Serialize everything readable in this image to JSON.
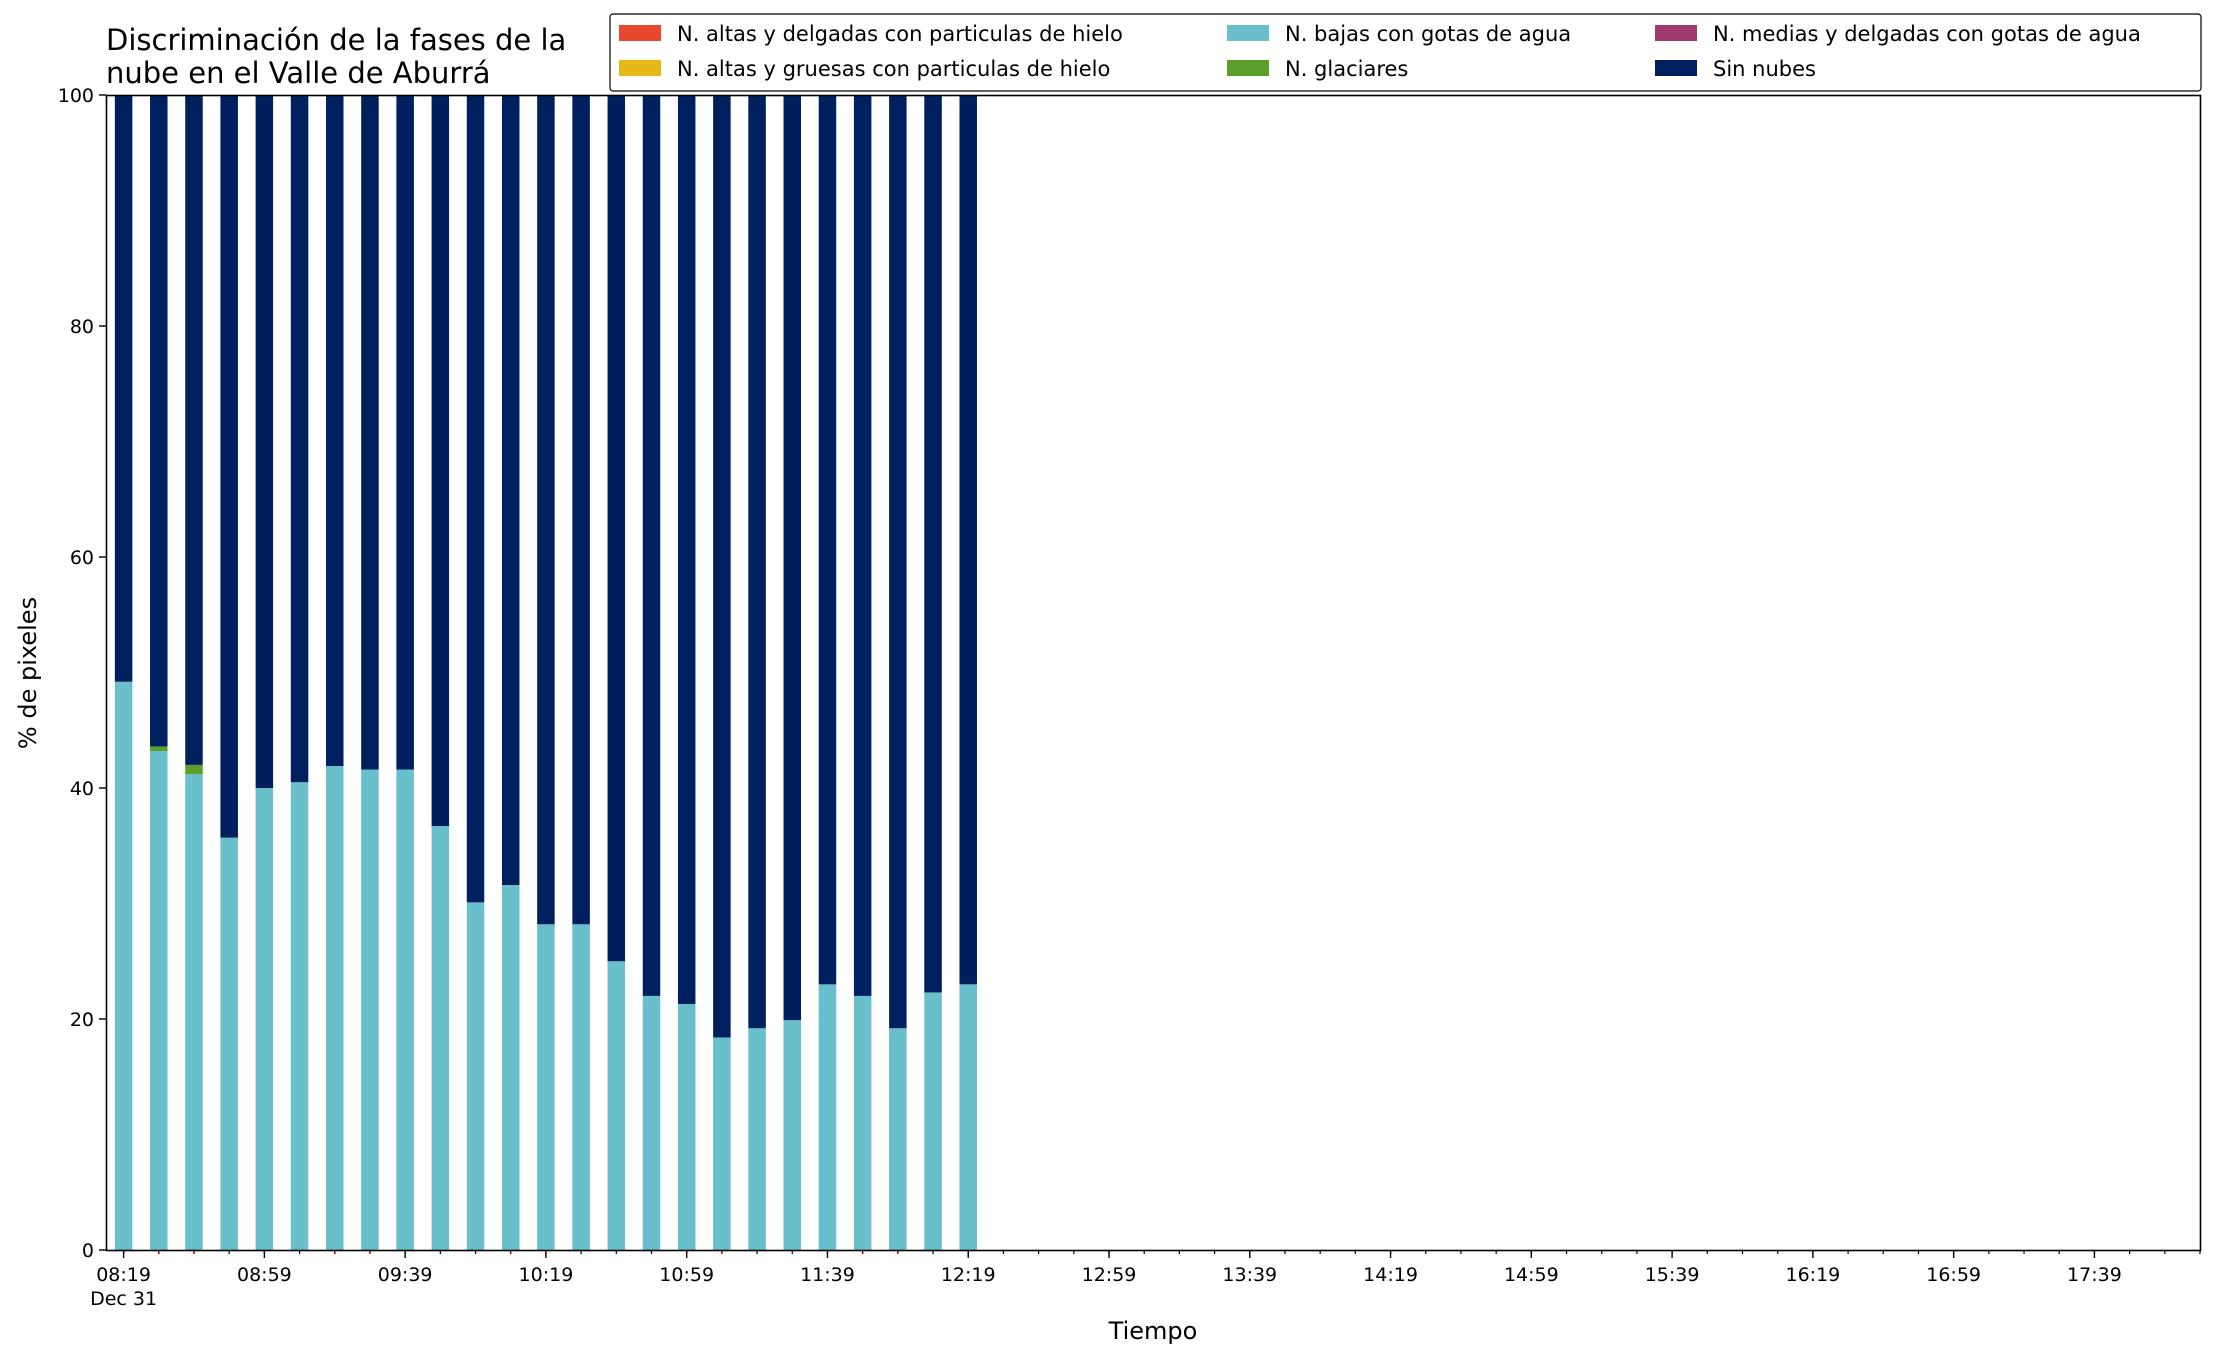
{
  "chart_data": {
    "type": "bar",
    "stacked": true,
    "title": [
      "Discriminación de la fases de la",
      "nube en el Valle de Aburrá"
    ],
    "xlabel": "Tiempo",
    "ylabel": "% de pixeles",
    "ylim": [
      0,
      100
    ],
    "yticks": [
      0,
      20,
      40,
      60,
      80,
      100
    ],
    "x_date_label": "Dec 31",
    "x_range": [
      "08:14",
      "18:09"
    ],
    "x_major_ticks": [
      "08:19",
      "08:59",
      "09:39",
      "10:19",
      "10:59",
      "11:39",
      "12:19",
      "12:59",
      "13:39",
      "14:19",
      "14:59",
      "15:39",
      "16:19",
      "16:59",
      "17:39"
    ],
    "x_minor_tick_interval_minutes": 10,
    "times": [
      "08:19",
      "08:29",
      "08:39",
      "08:49",
      "08:59",
      "09:09",
      "09:19",
      "09:29",
      "09:39",
      "09:49",
      "09:59",
      "10:09",
      "10:19",
      "10:29",
      "10:39",
      "10:49",
      "10:59",
      "11:09",
      "11:19",
      "11:29",
      "11:39",
      "11:49",
      "11:59",
      "12:09",
      "12:19"
    ],
    "series": [
      {
        "name": "N. altas y delgadas con particulas de hielo",
        "color": "#e8472b",
        "values": [
          0,
          0,
          0,
          0,
          0,
          0,
          0,
          0,
          0,
          0,
          0,
          0,
          0,
          0,
          0,
          0,
          0,
          0,
          0,
          0,
          0,
          0,
          0,
          0,
          0
        ]
      },
      {
        "name": "N. altas y gruesas con particulas de hielo",
        "color": "#e6b818",
        "values": [
          0,
          0,
          0,
          0,
          0,
          0,
          0,
          0,
          0,
          0,
          0,
          0,
          0,
          0,
          0,
          0,
          0,
          0,
          0,
          0,
          0,
          0,
          0,
          0,
          0
        ]
      },
      {
        "name": "N. bajas con gotas de agua",
        "color": "#69bfcb",
        "values": [
          49.2,
          43.2,
          41.2,
          35.7,
          40.0,
          40.5,
          41.9,
          41.6,
          41.6,
          36.7,
          30.1,
          31.6,
          28.2,
          28.2,
          25.0,
          22.0,
          21.3,
          18.4,
          19.2,
          19.9,
          23.0,
          22.0,
          19.2,
          22.3,
          23.0
        ]
      },
      {
        "name": "N. glaciares",
        "color": "#5a9e2c",
        "values": [
          0,
          0.4,
          0.8,
          0,
          0,
          0,
          0,
          0,
          0,
          0,
          0,
          0,
          0,
          0,
          0,
          0,
          0,
          0,
          0,
          0,
          0,
          0,
          0,
          0,
          0
        ]
      },
      {
        "name": "N. medias y delgadas con gotas de agua",
        "color": "#a03b71",
        "values": [
          0,
          0,
          0,
          0,
          0,
          0,
          0,
          0,
          0,
          0,
          0,
          0,
          0,
          0,
          0,
          0,
          0,
          0,
          0,
          0,
          0,
          0,
          0,
          0,
          0
        ]
      },
      {
        "name": "Sin nubes",
        "color": "#001f5e",
        "values": [
          50.8,
          56.4,
          58.0,
          64.3,
          60.0,
          59.5,
          58.1,
          58.4,
          58.4,
          63.3,
          69.9,
          68.4,
          71.8,
          71.8,
          75.0,
          78.0,
          78.7,
          81.6,
          80.8,
          80.1,
          77.0,
          78.0,
          80.8,
          77.7,
          77.0
        ]
      }
    ],
    "legend": {
      "placement": "top-right",
      "columns": 3
    }
  }
}
